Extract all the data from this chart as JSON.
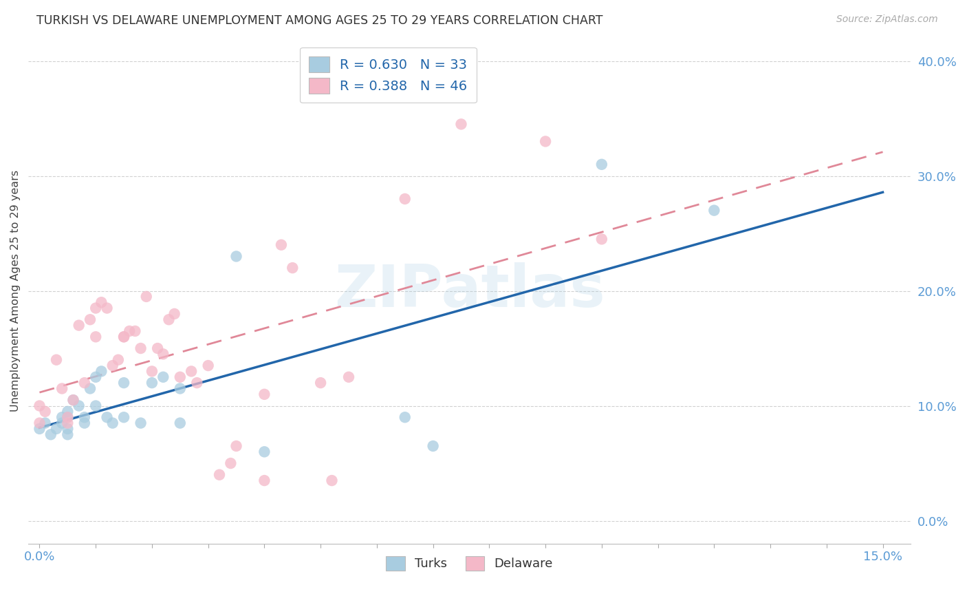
{
  "title": "TURKISH VS DELAWARE UNEMPLOYMENT AMONG AGES 25 TO 29 YEARS CORRELATION CHART",
  "source": "Source: ZipAtlas.com",
  "tick_color": "#5b9bd5",
  "ylabel": "Unemployment Among Ages 25 to 29 years",
  "xlim": [
    -0.2,
    15.5
  ],
  "ylim": [
    -2.0,
    42.0
  ],
  "xtick_major": [
    0.0,
    15.0
  ],
  "xtick_minor_step": 1.0,
  "yticks_right": [
    0.0,
    10.0,
    20.0,
    30.0,
    40.0
  ],
  "legend_r_blue": "R = 0.630",
  "legend_n_blue": "N = 33",
  "legend_r_pink": "R = 0.388",
  "legend_n_pink": "N = 46",
  "legend_label_blue": "Turks",
  "legend_label_pink": "Delaware",
  "blue_scatter_color": "#a8cce0",
  "pink_scatter_color": "#f4b8c8",
  "blue_line_color": "#2266aa",
  "pink_line_color": "#e08898",
  "turks_x": [
    0.0,
    0.1,
    0.2,
    0.3,
    0.4,
    0.4,
    0.5,
    0.5,
    0.5,
    0.5,
    0.6,
    0.7,
    0.8,
    0.8,
    0.9,
    1.0,
    1.0,
    1.1,
    1.2,
    1.3,
    1.5,
    1.5,
    1.8,
    2.0,
    2.2,
    2.5,
    2.5,
    3.5,
    4.0,
    6.5,
    7.0,
    10.0,
    12.0
  ],
  "turks_y": [
    8.0,
    8.5,
    7.5,
    8.0,
    8.5,
    9.0,
    7.5,
    9.0,
    8.0,
    9.5,
    10.5,
    10.0,
    8.5,
    9.0,
    11.5,
    12.5,
    10.0,
    13.0,
    9.0,
    8.5,
    12.0,
    9.0,
    8.5,
    12.0,
    12.5,
    11.5,
    8.5,
    23.0,
    6.0,
    9.0,
    6.5,
    31.0,
    27.0
  ],
  "delaware_x": [
    0.0,
    0.0,
    0.1,
    0.3,
    0.4,
    0.5,
    0.5,
    0.6,
    0.7,
    0.8,
    0.9,
    1.0,
    1.0,
    1.1,
    1.2,
    1.3,
    1.4,
    1.5,
    1.5,
    1.6,
    1.7,
    1.8,
    1.9,
    2.0,
    2.1,
    2.2,
    2.3,
    2.4,
    2.5,
    2.7,
    2.8,
    3.0,
    3.2,
    3.4,
    3.5,
    4.0,
    4.0,
    4.3,
    4.5,
    5.0,
    5.2,
    5.5,
    6.5,
    7.5,
    9.0,
    10.0
  ],
  "delaware_y": [
    8.5,
    10.0,
    9.5,
    14.0,
    11.5,
    9.0,
    8.5,
    10.5,
    17.0,
    12.0,
    17.5,
    16.0,
    18.5,
    19.0,
    18.5,
    13.5,
    14.0,
    16.0,
    16.0,
    16.5,
    16.5,
    15.0,
    19.5,
    13.0,
    15.0,
    14.5,
    17.5,
    18.0,
    12.5,
    13.0,
    12.0,
    13.5,
    4.0,
    5.0,
    6.5,
    3.5,
    11.0,
    24.0,
    22.0,
    12.0,
    3.5,
    12.5,
    28.0,
    34.5,
    33.0,
    24.5
  ]
}
